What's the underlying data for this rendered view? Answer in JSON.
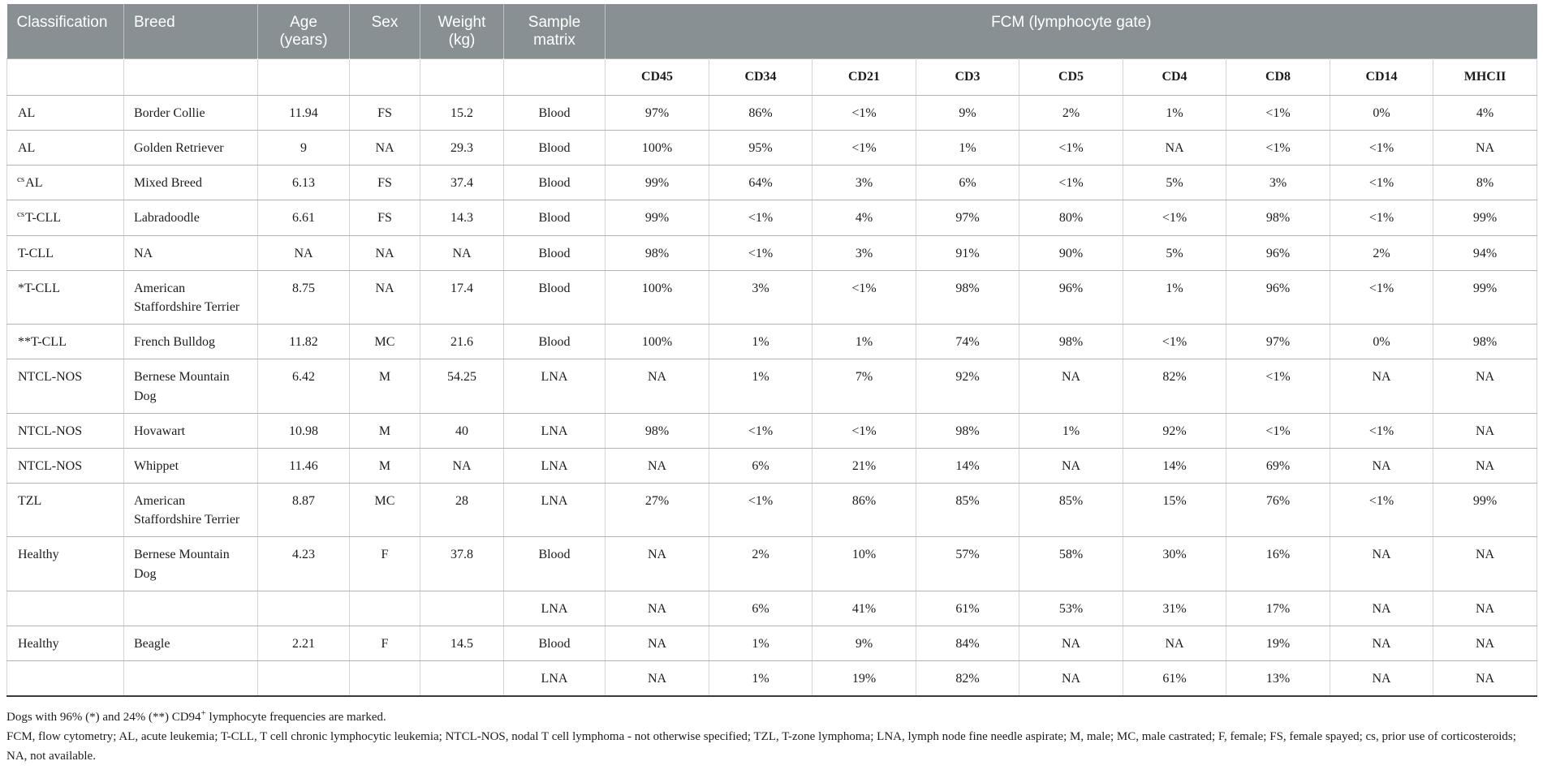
{
  "table": {
    "header": {
      "classification": "Classification",
      "breed": "Breed",
      "age": [
        "Age",
        "(years)"
      ],
      "sex": "Sex",
      "weight": [
        "Weight",
        "(kg)"
      ],
      "sample_matrix": [
        "Sample",
        "matrix"
      ],
      "fcm_group": "FCM (lymphocyte gate)"
    },
    "markers": [
      "CD45",
      "CD34",
      "CD21",
      "CD3",
      "CD5",
      "CD4",
      "CD8",
      "CD14",
      "MHCII"
    ],
    "rows": [
      {
        "classification_sup": "",
        "classification": "AL",
        "breed": "Border Collie",
        "age": "11.94",
        "sex": "FS",
        "weight": "15.2",
        "matrix": "Blood",
        "values": [
          "97%",
          "86%",
          "<1%",
          "9%",
          "2%",
          "1%",
          "<1%",
          "0%",
          "4%"
        ]
      },
      {
        "classification_sup": "",
        "classification": "AL",
        "breed": "Golden Retriever",
        "age": "9",
        "sex": "NA",
        "weight": "29.3",
        "matrix": "Blood",
        "values": [
          "100%",
          "95%",
          "<1%",
          "1%",
          "<1%",
          "NA",
          "<1%",
          "<1%",
          "NA"
        ]
      },
      {
        "classification_sup": "cs",
        "classification": "AL",
        "breed": "Mixed Breed",
        "age": "6.13",
        "sex": "FS",
        "weight": "37.4",
        "matrix": "Blood",
        "values": [
          "99%",
          "64%",
          "3%",
          "6%",
          "<1%",
          "5%",
          "3%",
          "<1%",
          "8%"
        ]
      },
      {
        "classification_sup": "cs",
        "classification": "T-CLL",
        "breed": "Labradoodle",
        "age": "6.61",
        "sex": "FS",
        "weight": "14.3",
        "matrix": "Blood",
        "values": [
          "99%",
          "<1%",
          "4%",
          "97%",
          "80%",
          "<1%",
          "98%",
          "<1%",
          "99%"
        ]
      },
      {
        "classification_sup": "",
        "classification": "T-CLL",
        "breed": "NA",
        "age": "NA",
        "sex": "NA",
        "weight": "NA",
        "matrix": "Blood",
        "values": [
          "98%",
          "<1%",
          "3%",
          "91%",
          "90%",
          "5%",
          "96%",
          "2%",
          "94%"
        ]
      },
      {
        "classification_sup": "",
        "classification": "*T-CLL",
        "breed": "American Staffordshire Terrier",
        "age": "8.75",
        "sex": "NA",
        "weight": "17.4",
        "matrix": "Blood",
        "values": [
          "100%",
          "3%",
          "<1%",
          "98%",
          "96%",
          "1%",
          "96%",
          "<1%",
          "99%"
        ]
      },
      {
        "classification_sup": "",
        "classification": "**T-CLL",
        "breed": "French Bulldog",
        "age": "11.82",
        "sex": "MC",
        "weight": "21.6",
        "matrix": "Blood",
        "values": [
          "100%",
          "1%",
          "1%",
          "74%",
          "98%",
          "<1%",
          "97%",
          "0%",
          "98%"
        ]
      },
      {
        "classification_sup": "",
        "classification": "NTCL-NOS",
        "breed": "Bernese Mountain Dog",
        "age": "6.42",
        "sex": "M",
        "weight": "54.25",
        "matrix": "LNA",
        "values": [
          "NA",
          "1%",
          "7%",
          "92%",
          "NA",
          "82%",
          "<1%",
          "NA",
          "NA"
        ]
      },
      {
        "classification_sup": "",
        "classification": "NTCL-NOS",
        "breed": "Hovawart",
        "age": "10.98",
        "sex": "M",
        "weight": "40",
        "matrix": "LNA",
        "values": [
          "98%",
          "<1%",
          "<1%",
          "98%",
          "1%",
          "92%",
          "<1%",
          "<1%",
          "NA"
        ]
      },
      {
        "classification_sup": "",
        "classification": "NTCL-NOS",
        "breed": "Whippet",
        "age": "11.46",
        "sex": "M",
        "weight": "NA",
        "matrix": "LNA",
        "values": [
          "NA",
          "6%",
          "21%",
          "14%",
          "NA",
          "14%",
          "69%",
          "NA",
          "NA"
        ]
      },
      {
        "classification_sup": "",
        "classification": "TZL",
        "breed": "American Staffordshire Terrier",
        "age": "8.87",
        "sex": "MC",
        "weight": "28",
        "matrix": "LNA",
        "values": [
          "27%",
          "<1%",
          "86%",
          "85%",
          "85%",
          "15%",
          "76%",
          "<1%",
          "99%"
        ]
      },
      {
        "classification_sup": "",
        "classification": "Healthy",
        "breed": "Bernese Mountain Dog",
        "age": "4.23",
        "sex": "F",
        "weight": "37.8",
        "matrix": "Blood",
        "values": [
          "NA",
          "2%",
          "10%",
          "57%",
          "58%",
          "30%",
          "16%",
          "NA",
          "NA"
        ]
      },
      {
        "classification_sup": "",
        "classification": "",
        "breed": "",
        "age": "",
        "sex": "",
        "weight": "",
        "matrix": "LNA",
        "values": [
          "NA",
          "6%",
          "41%",
          "61%",
          "53%",
          "31%",
          "17%",
          "NA",
          "NA"
        ]
      },
      {
        "classification_sup": "",
        "classification": "Healthy",
        "breed": "Beagle",
        "age": "2.21",
        "sex": "F",
        "weight": "14.5",
        "matrix": "Blood",
        "values": [
          "NA",
          "1%",
          "9%",
          "84%",
          "NA",
          "NA",
          "19%",
          "NA",
          "NA"
        ]
      },
      {
        "classification_sup": "",
        "classification": "",
        "breed": "",
        "age": "",
        "sex": "",
        "weight": "",
        "matrix": "LNA",
        "values": [
          "NA",
          "1%",
          "19%",
          "82%",
          "NA",
          "61%",
          "13%",
          "NA",
          "NA"
        ]
      }
    ]
  },
  "footnotes": {
    "line1_pre": "Dogs with 96% (*) and 24% (**) CD94",
    "line1_sup": "+",
    "line1_post": " lymphocyte frequencies are marked.",
    "line2": "FCM, flow cytometry; AL, acute leukemia; T-CLL, T cell chronic lymphocytic leukemia; NTCL-NOS, nodal T cell lymphoma - not otherwise specified; TZL, T-zone lymphoma; LNA, lymph node fine needle aspirate; M, male; MC, male castrated; F, female; FS, female spayed; cs, prior use of corticosteroids; NA, not available."
  }
}
